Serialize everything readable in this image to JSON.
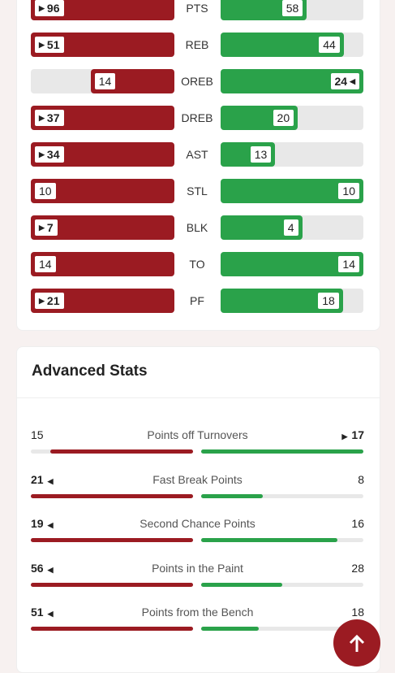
{
  "team_comparison": {
    "rows": [
      {
        "label": "PTS",
        "left": 96,
        "right": 58
      },
      {
        "label": "REB",
        "left": 51,
        "right": 44
      },
      {
        "label": "OREB",
        "left": 14,
        "right": 24
      },
      {
        "label": "DREB",
        "left": 37,
        "right": 20
      },
      {
        "label": "AST",
        "left": 34,
        "right": 13
      },
      {
        "label": "STL",
        "left": 10,
        "right": 10
      },
      {
        "label": "BLK",
        "left": 7,
        "right": 4
      },
      {
        "label": "TO",
        "left": 14,
        "right": 14
      },
      {
        "label": "PF",
        "left": 21,
        "right": 18
      }
    ]
  },
  "advanced_stats": {
    "title": "Advanced Stats",
    "rows": [
      {
        "label": "Points off Turnovers",
        "left": 15,
        "right": 17
      },
      {
        "label": "Fast Break Points",
        "left": 21,
        "right": 8
      },
      {
        "label": "Second Chance Points",
        "left": 19,
        "right": 16
      },
      {
        "label": "Points in the Paint",
        "left": 56,
        "right": 28
      },
      {
        "label": "Points from the Bench",
        "left": 51,
        "right": 18
      }
    ]
  }
}
